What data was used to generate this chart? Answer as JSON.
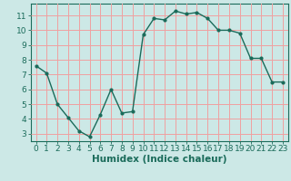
{
  "x": [
    0,
    1,
    2,
    3,
    4,
    5,
    6,
    7,
    8,
    9,
    10,
    11,
    12,
    13,
    14,
    15,
    16,
    17,
    18,
    19,
    20,
    21,
    22,
    23
  ],
  "y": [
    7.6,
    7.1,
    5.0,
    4.1,
    3.2,
    2.8,
    4.3,
    6.0,
    4.4,
    4.5,
    9.7,
    10.8,
    10.7,
    11.3,
    11.1,
    11.2,
    10.8,
    10.0,
    10.0,
    9.8,
    8.1,
    8.1,
    6.5,
    6.5
  ],
  "line_color": "#1a6b5a",
  "marker_color": "#1a6b5a",
  "bg_color": "#cce8e6",
  "grid_color": "#f0a0a0",
  "axis_color": "#1a6b5a",
  "xlabel": "Humidex (Indice chaleur)",
  "ylim": [
    2.5,
    11.8
  ],
  "xlim": [
    -0.5,
    23.5
  ],
  "yticks": [
    3,
    4,
    5,
    6,
    7,
    8,
    9,
    10,
    11
  ],
  "xticks": [
    0,
    1,
    2,
    3,
    4,
    5,
    6,
    7,
    8,
    9,
    10,
    11,
    12,
    13,
    14,
    15,
    16,
    17,
    18,
    19,
    20,
    21,
    22,
    23
  ],
  "font_size": 6.5,
  "label_font_size": 7.5
}
